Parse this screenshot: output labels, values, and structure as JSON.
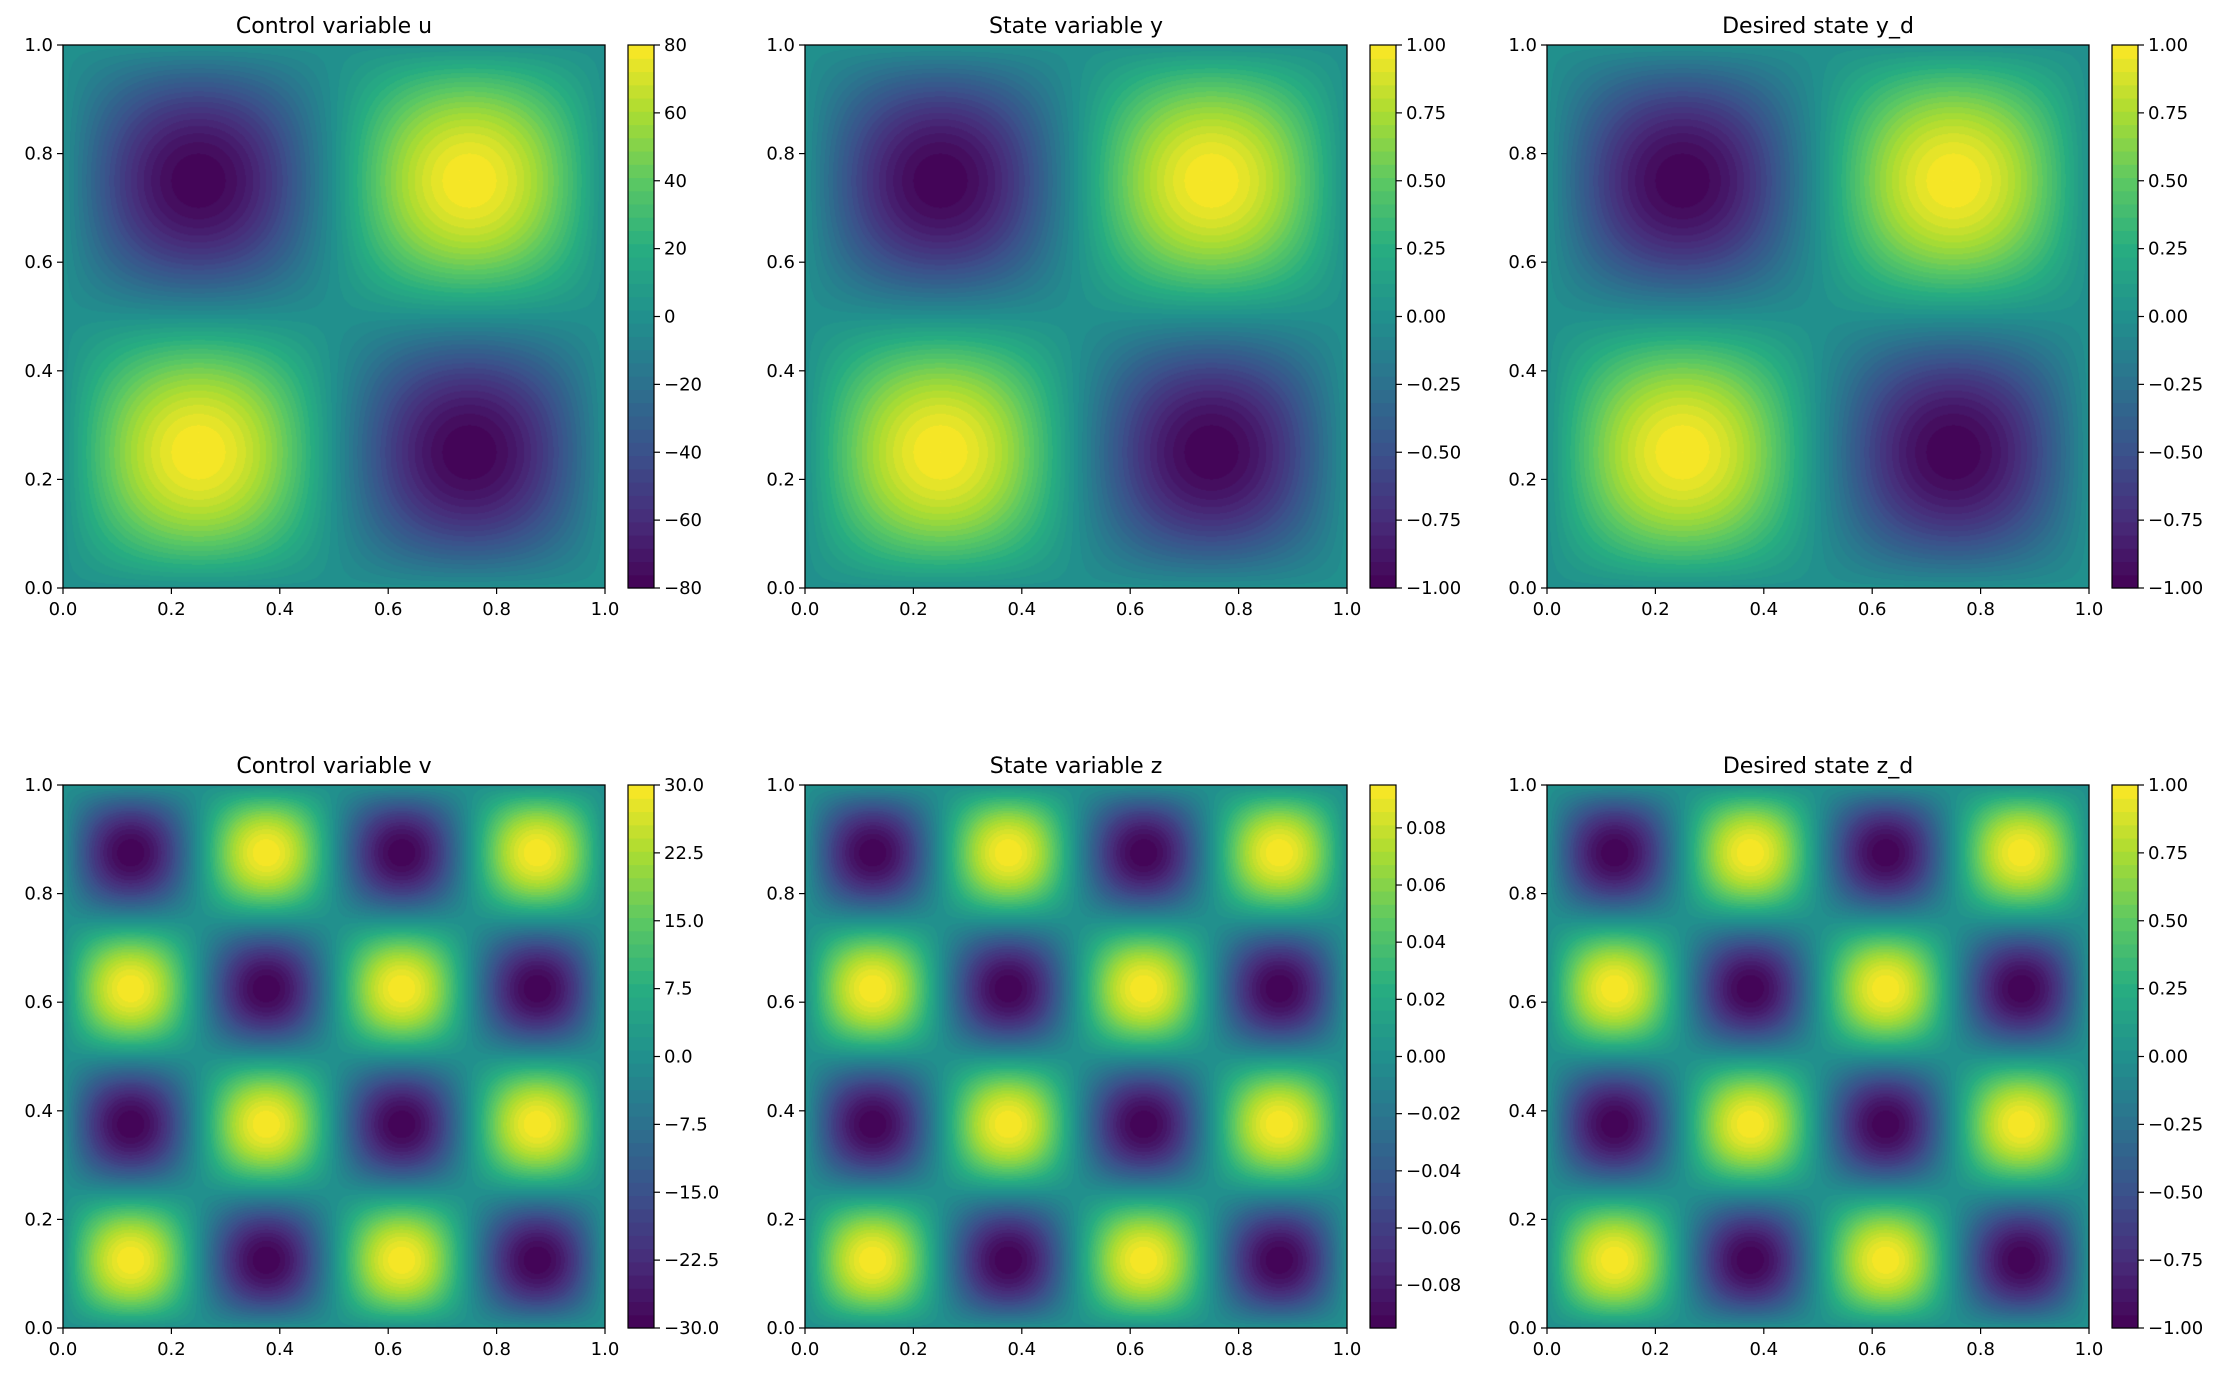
{
  "chart_data": [
    {
      "type": "heatmap",
      "title": "Control variable u",
      "field": "sin(2*pi*x)*sin(2*pi*y)",
      "amplitude": 80,
      "xlim": [
        0,
        1
      ],
      "ylim": [
        0,
        1
      ],
      "xticks": [
        "0.0",
        "0.2",
        "0.4",
        "0.6",
        "0.8",
        "1.0"
      ],
      "yticks": [
        "0.0",
        "0.2",
        "0.4",
        "0.6",
        "0.8",
        "1.0"
      ],
      "colorbar": {
        "min": -80,
        "max": 80,
        "ticks": [
          "−80",
          "−60",
          "−40",
          "−20",
          "0",
          "20",
          "40",
          "60",
          "80"
        ]
      },
      "colormap": "viridis"
    },
    {
      "type": "heatmap",
      "title": "State variable y",
      "field": "sin(2*pi*x)*sin(2*pi*y)",
      "amplitude": 1,
      "xlim": [
        0,
        1
      ],
      "ylim": [
        0,
        1
      ],
      "xticks": [
        "0.0",
        "0.2",
        "0.4",
        "0.6",
        "0.8",
        "1.0"
      ],
      "yticks": [
        "0.0",
        "0.2",
        "0.4",
        "0.6",
        "0.8",
        "1.0"
      ],
      "colorbar": {
        "min": -1,
        "max": 1,
        "ticks": [
          "−1.00",
          "−0.75",
          "−0.50",
          "−0.25",
          "0.00",
          "0.25",
          "0.50",
          "0.75",
          "1.00"
        ]
      },
      "colormap": "viridis"
    },
    {
      "type": "heatmap",
      "title": "Desired state y_d",
      "field": "sin(2*pi*x)*sin(2*pi*y)",
      "amplitude": 1,
      "xlim": [
        0,
        1
      ],
      "ylim": [
        0,
        1
      ],
      "xticks": [
        "0.0",
        "0.2",
        "0.4",
        "0.6",
        "0.8",
        "1.0"
      ],
      "yticks": [
        "0.0",
        "0.2",
        "0.4",
        "0.6",
        "0.8",
        "1.0"
      ],
      "colorbar": {
        "min": -1,
        "max": 1,
        "ticks": [
          "−1.00",
          "−0.75",
          "−0.50",
          "−0.25",
          "0.00",
          "0.25",
          "0.50",
          "0.75",
          "1.00"
        ]
      },
      "colormap": "viridis"
    },
    {
      "type": "heatmap",
      "title": "Control variable v",
      "field": "sin(4*pi*x)*sin(4*pi*y)",
      "amplitude": 30,
      "xlim": [
        0,
        1
      ],
      "ylim": [
        0,
        1
      ],
      "xticks": [
        "0.0",
        "0.2",
        "0.4",
        "0.6",
        "0.8",
        "1.0"
      ],
      "yticks": [
        "0.0",
        "0.2",
        "0.4",
        "0.6",
        "0.8",
        "1.0"
      ],
      "colorbar": {
        "min": -30,
        "max": 30,
        "ticks": [
          "−30.0",
          "−22.5",
          "−15.0",
          "−7.5",
          "0.0",
          "7.5",
          "15.0",
          "22.5",
          "30.0"
        ]
      },
      "colormap": "viridis"
    },
    {
      "type": "heatmap",
      "title": "State variable z",
      "field": "sin(4*pi*x)*sin(4*pi*y)",
      "amplitude": 0.095,
      "xlim": [
        0,
        1
      ],
      "ylim": [
        0,
        1
      ],
      "xticks": [
        "0.0",
        "0.2",
        "0.4",
        "0.6",
        "0.8",
        "1.0"
      ],
      "yticks": [
        "0.0",
        "0.2",
        "0.4",
        "0.6",
        "0.8",
        "1.0"
      ],
      "colorbar": {
        "min": -0.095,
        "max": 0.095,
        "ticks": [
          "−0.08",
          "−0.06",
          "−0.04",
          "−0.02",
          "0.00",
          "0.02",
          "0.04",
          "0.06",
          "0.08"
        ]
      },
      "colormap": "viridis"
    },
    {
      "type": "heatmap",
      "title": "Desired state z_d",
      "field": "sin(4*pi*x)*sin(4*pi*y)",
      "amplitude": 1,
      "xlim": [
        0,
        1
      ],
      "ylim": [
        0,
        1
      ],
      "xticks": [
        "0.0",
        "0.2",
        "0.4",
        "0.6",
        "0.8",
        "1.0"
      ],
      "yticks": [
        "0.0",
        "0.2",
        "0.4",
        "0.6",
        "0.8",
        "1.0"
      ],
      "colorbar": {
        "min": -1,
        "max": 1,
        "ticks": [
          "−1.00",
          "−0.75",
          "−0.50",
          "−0.25",
          "0.00",
          "0.25",
          "0.50",
          "0.75",
          "1.00"
        ]
      },
      "colormap": "viridis"
    }
  ]
}
